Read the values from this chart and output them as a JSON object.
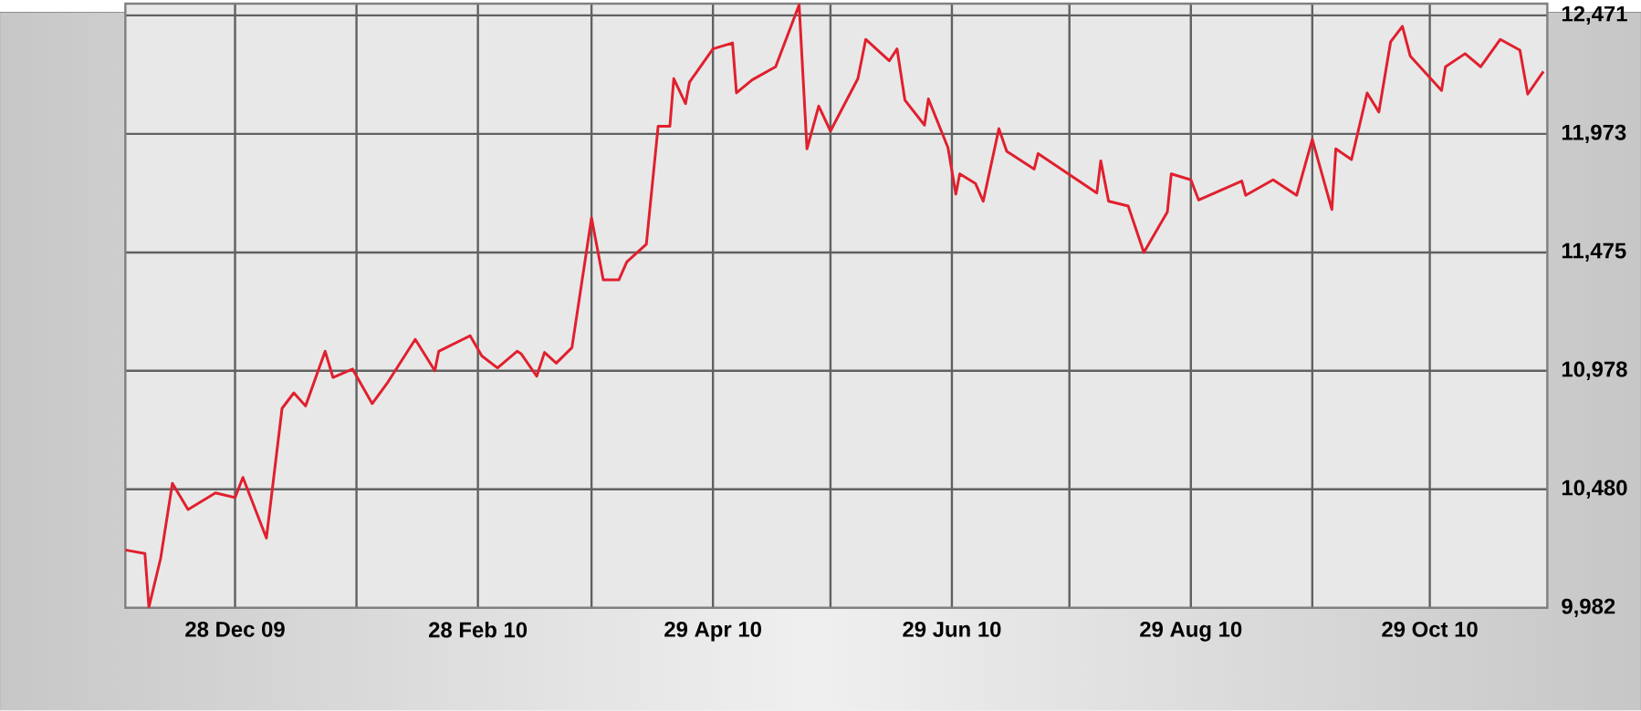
{
  "chart_data": {
    "type": "line",
    "x": [
      "2009-11-30",
      "2009-12-05",
      "2009-12-06",
      "2009-12-09",
      "2009-12-12",
      "2009-12-16",
      "2009-12-23",
      "2009-12-28",
      "2009-12-30",
      "2010-01-05",
      "2010-01-09",
      "2010-01-12",
      "2010-01-15",
      "2010-01-20",
      "2010-01-22",
      "2010-01-27",
      "2010-02-01",
      "2010-02-05",
      "2010-02-12",
      "2010-02-17",
      "2010-02-18",
      "2010-02-26",
      "2010-03-01",
      "2010-03-05",
      "2010-03-10",
      "2010-03-11",
      "2010-03-15",
      "2010-03-17",
      "2010-03-20",
      "2010-03-24",
      "2010-03-29",
      "2010-04-01",
      "2010-04-05",
      "2010-04-07",
      "2010-04-12",
      "2010-04-15",
      "2010-04-18",
      "2010-04-19",
      "2010-04-22",
      "2010-04-23",
      "2010-04-29",
      "2010-05-04",
      "2010-05-05",
      "2010-05-09",
      "2010-05-15",
      "2010-05-21",
      "2010-05-23",
      "2010-05-26",
      "2010-05-29",
      "2010-06-05",
      "2010-06-07",
      "2010-06-13",
      "2010-06-15",
      "2010-06-17",
      "2010-06-22",
      "2010-06-23",
      "2010-06-28",
      "2010-06-30",
      "2010-07-01",
      "2010-07-05",
      "2010-07-07",
      "2010-07-11",
      "2010-07-13",
      "2010-07-20",
      "2010-07-21",
      "2010-08-05",
      "2010-08-06",
      "2010-08-08",
      "2010-08-13",
      "2010-08-17",
      "2010-08-23",
      "2010-08-24",
      "2010-08-29",
      "2010-08-31",
      "2010-09-11",
      "2010-09-12",
      "2010-09-19",
      "2010-09-25",
      "2010-09-29",
      "2010-10-04",
      "2010-10-05",
      "2010-10-09",
      "2010-10-13",
      "2010-10-16",
      "2010-10-19",
      "2010-10-22",
      "2010-10-24",
      "2010-11-01",
      "2010-11-02",
      "2010-11-07",
      "2010-11-11",
      "2010-11-16",
      "2010-11-21",
      "2010-11-23",
      "2010-11-27"
    ],
    "series": [
      {
        "color": "#e0202e",
        "values": [
          10225,
          10210,
          9985,
          10190,
          10505,
          10395,
          10465,
          10445,
          10530,
          10275,
          10820,
          10885,
          10830,
          11060,
          10950,
          10985,
          10840,
          10930,
          11110,
          10978,
          11060,
          11125,
          11040,
          10990,
          11060,
          11050,
          10955,
          11055,
          11010,
          11075,
          11620,
          11360,
          11360,
          11435,
          11510,
          12005,
          12005,
          12205,
          12100,
          12190,
          12330,
          12355,
          12145,
          12200,
          12255,
          12515,
          11910,
          12090,
          11985,
          12205,
          12370,
          12280,
          12330,
          12115,
          12010,
          12120,
          11915,
          11720,
          11805,
          11765,
          11690,
          11995,
          11900,
          11825,
          11890,
          11725,
          11860,
          11690,
          11670,
          11475,
          11645,
          11805,
          11780,
          11695,
          11775,
          11715,
          11780,
          11715,
          11950,
          11655,
          11910,
          11865,
          12145,
          12065,
          12360,
          12425,
          12300,
          12155,
          12255,
          12310,
          12255,
          12370,
          12325,
          12140,
          12235
        ]
      }
    ],
    "xlim": [
      "2009-11-30",
      "2010-11-28"
    ],
    "xticks": [
      {
        "value": "2009-12-28",
        "label": "28 Dec 09"
      },
      {
        "value": "2010-01-28",
        "label": null
      },
      {
        "value": "2010-02-28",
        "label": "28 Feb 10"
      },
      {
        "value": "2010-03-29",
        "label": null
      },
      {
        "value": "2010-04-29",
        "label": "29 Apr 10"
      },
      {
        "value": "2010-05-29",
        "label": null
      },
      {
        "value": "2010-06-29",
        "label": "29 Jun 10"
      },
      {
        "value": "2010-07-29",
        "label": null
      },
      {
        "value": "2010-08-29",
        "label": "29 Aug 10"
      },
      {
        "value": "2010-09-29",
        "label": null
      },
      {
        "value": "2010-10-29",
        "label": "29 Oct 10"
      }
    ],
    "ylim": [
      9982,
      12520
    ],
    "yticks": [
      {
        "value": 9982,
        "label": "9,982"
      },
      {
        "value": 10480,
        "label": "10,480"
      },
      {
        "value": 10978,
        "label": "10,978"
      },
      {
        "value": 11475,
        "label": "11,475"
      },
      {
        "value": 11973,
        "label": "11,973"
      },
      {
        "value": 12471,
        "label": "12,471"
      }
    ],
    "grid": true,
    "legend": false,
    "marker": "none",
    "line_style": "solid"
  }
}
